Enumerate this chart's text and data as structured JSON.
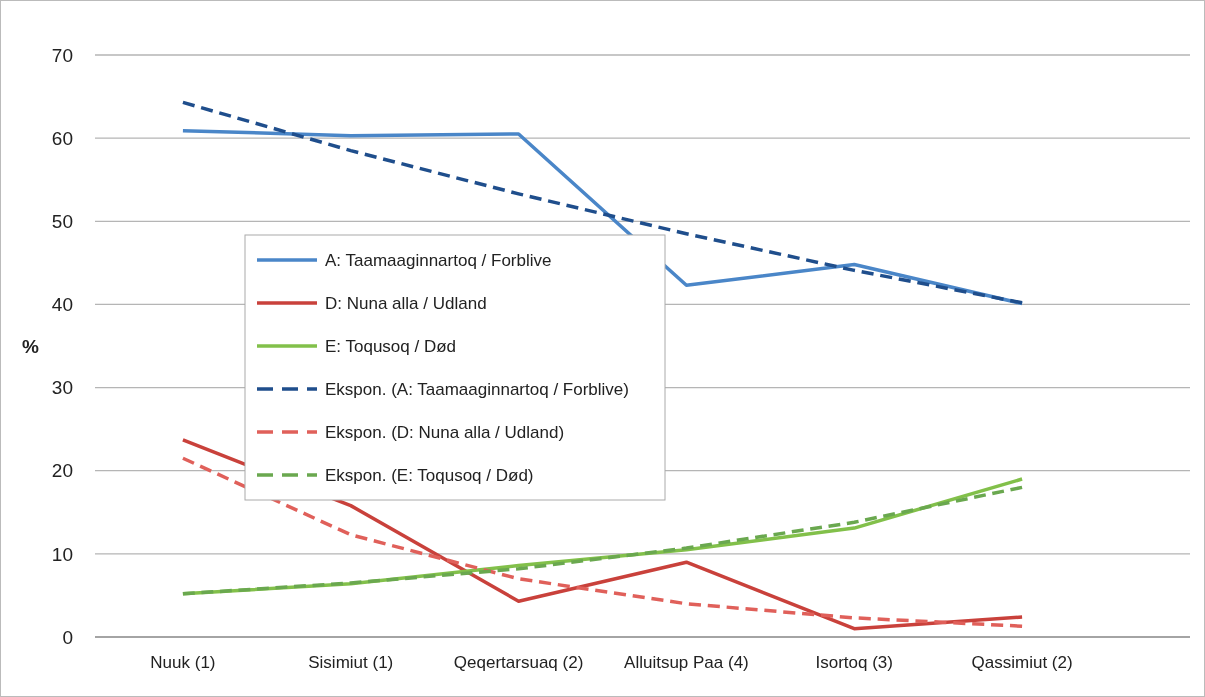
{
  "chart_data": {
    "type": "line",
    "ylabel": "%",
    "categories": [
      "Nuuk (1)",
      "Sisimiut (1)",
      "Qeqertarsuaq (2)",
      "Alluitsup Paa (4)",
      "Isortoq (3)",
      "Qassimiut (2)"
    ],
    "series": [
      {
        "name": "A: Taamaaginnartoq / Forblive",
        "color": "#4a86c8",
        "line_style": "solid",
        "values": [
          60.9,
          60.3,
          60.5,
          42.3,
          44.8,
          40.1
        ]
      },
      {
        "name": "D: Nuna alla / Udland",
        "color": "#c9413b",
        "line_style": "solid",
        "values": [
          23.7,
          15.8,
          4.3,
          9.0,
          1.0,
          2.4
        ]
      },
      {
        "name": "E: Toqusoq / Død",
        "color": "#82c04a",
        "line_style": "solid",
        "values": [
          5.2,
          6.4,
          8.6,
          10.5,
          13.1,
          19.0
        ]
      },
      {
        "name": "Ekspon. (A: Taamaaginnartoq / Forblive)",
        "color": "#1f4e8c",
        "line_style": "dashed",
        "values": [
          64.3,
          58.5,
          53.3,
          48.5,
          44.1,
          40.2
        ]
      },
      {
        "name": "Ekspon. (D: Nuna alla / Udland)",
        "color": "#e0605a",
        "line_style": "dashed",
        "values": [
          21.5,
          12.3,
          7.0,
          4.0,
          2.3,
          1.3
        ]
      },
      {
        "name": "Ekspon. (E: Toqusoq / Død)",
        "color": "#6aa84f",
        "line_style": "dashed",
        "values": [
          5.2,
          6.5,
          8.2,
          10.7,
          13.8,
          18.0
        ]
      }
    ],
    "ylim": [
      0,
      70
    ],
    "yticks": [
      0,
      10,
      20,
      30,
      40,
      50,
      60,
      70
    ],
    "grid": "y",
    "legend": "center",
    "marker": "none"
  }
}
